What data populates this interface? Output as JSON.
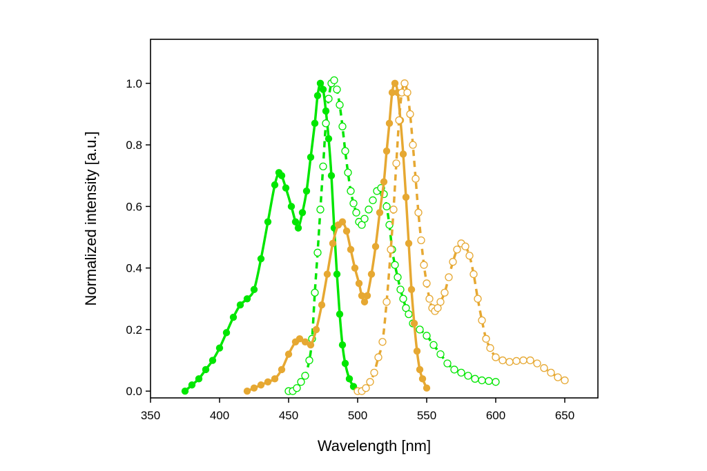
{
  "chart_data": {
    "type": "scatter",
    "title": "",
    "xlabel": "Wavelength [nm]",
    "ylabel": "Normalized intensity [a.u.]",
    "xlim": [
      350,
      674
    ],
    "ylim": [
      -0.022,
      1.143
    ],
    "xticks": [
      "350",
      "400",
      "450",
      "500",
      "550",
      "600",
      "650"
    ],
    "yticks": [
      "0.0",
      "0.2",
      "0.4",
      "0.6",
      "0.8",
      "1.0"
    ],
    "grid": false,
    "legend": "none",
    "series": [
      {
        "color": "#00e600",
        "marker": "filled",
        "line": "solid",
        "x": [
          375,
          380,
          385,
          390,
          395,
          400,
          405,
          410,
          415,
          420,
          425,
          430,
          435,
          440,
          443,
          445,
          448,
          452,
          455,
          457,
          460,
          463,
          466,
          469,
          471,
          473,
          475,
          477,
          479,
          481,
          483,
          485,
          487,
          489,
          491,
          494,
          497,
          500
        ],
        "y": [
          0.0,
          0.02,
          0.04,
          0.07,
          0.1,
          0.14,
          0.19,
          0.24,
          0.28,
          0.3,
          0.33,
          0.43,
          0.55,
          0.67,
          0.71,
          0.7,
          0.66,
          0.6,
          0.55,
          0.53,
          0.58,
          0.65,
          0.76,
          0.87,
          0.96,
          1.0,
          0.98,
          0.91,
          0.82,
          0.7,
          0.53,
          0.38,
          0.25,
          0.15,
          0.09,
          0.04,
          0.015,
          0.0
        ]
      },
      {
        "color": "#00e600",
        "marker": "open",
        "line": "dashed",
        "x": [
          450,
          453,
          456,
          459,
          462,
          465,
          467,
          469,
          471,
          473,
          475,
          477,
          479,
          481,
          483,
          485,
          487,
          489,
          491,
          493,
          495,
          497,
          499,
          501,
          503,
          505,
          508,
          511,
          514,
          517,
          519,
          521,
          523,
          525,
          527,
          529,
          531,
          533,
          535,
          537,
          540,
          545,
          550,
          555,
          560,
          565,
          570,
          575,
          580,
          585,
          590,
          595,
          600
        ],
        "y": [
          0.0,
          0.0,
          0.01,
          0.03,
          0.05,
          0.1,
          0.17,
          0.32,
          0.45,
          0.59,
          0.73,
          0.87,
          0.95,
          1.0,
          1.01,
          0.98,
          0.93,
          0.86,
          0.78,
          0.71,
          0.65,
          0.61,
          0.58,
          0.55,
          0.54,
          0.56,
          0.59,
          0.62,
          0.65,
          0.66,
          0.64,
          0.6,
          0.54,
          0.46,
          0.41,
          0.37,
          0.33,
          0.3,
          0.27,
          0.25,
          0.22,
          0.2,
          0.18,
          0.15,
          0.12,
          0.09,
          0.07,
          0.06,
          0.05,
          0.04,
          0.035,
          0.033,
          0.03
        ]
      },
      {
        "color": "#e6a832",
        "marker": "filled",
        "line": "solid",
        "x": [
          420,
          425,
          430,
          435,
          440,
          445,
          450,
          455,
          458,
          462,
          466,
          470,
          474,
          478,
          482,
          486,
          489,
          492,
          495,
          498,
          501,
          503,
          505,
          507,
          510,
          513,
          516,
          519,
          521,
          523,
          525,
          527,
          529,
          531,
          533,
          535,
          537,
          539,
          541,
          543,
          545,
          547,
          550
        ],
        "y": [
          0.0,
          0.01,
          0.02,
          0.03,
          0.04,
          0.07,
          0.12,
          0.16,
          0.17,
          0.16,
          0.15,
          0.2,
          0.28,
          0.38,
          0.48,
          0.54,
          0.55,
          0.52,
          0.46,
          0.4,
          0.35,
          0.31,
          0.29,
          0.31,
          0.38,
          0.47,
          0.58,
          0.68,
          0.78,
          0.87,
          0.97,
          1.0,
          0.97,
          0.88,
          0.77,
          0.63,
          0.48,
          0.33,
          0.22,
          0.13,
          0.07,
          0.04,
          0.01
        ]
      },
      {
        "color": "#e6a832",
        "marker": "open",
        "line": "dashed",
        "x": [
          500,
          503,
          506,
          509,
          512,
          515,
          518,
          521,
          524,
          526,
          528,
          530,
          532,
          534,
          536,
          538,
          540,
          542,
          544,
          546,
          548,
          550,
          552,
          554,
          556,
          558,
          560,
          563,
          566,
          569,
          572,
          575,
          578,
          581,
          584,
          587,
          590,
          593,
          596,
          600,
          605,
          610,
          615,
          620,
          625,
          630,
          635,
          640,
          645,
          650
        ],
        "y": [
          0.0,
          0.0,
          0.01,
          0.03,
          0.06,
          0.11,
          0.16,
          0.29,
          0.46,
          0.59,
          0.74,
          0.88,
          0.97,
          1.0,
          0.97,
          0.9,
          0.8,
          0.69,
          0.58,
          0.49,
          0.41,
          0.35,
          0.3,
          0.27,
          0.26,
          0.27,
          0.29,
          0.32,
          0.37,
          0.42,
          0.46,
          0.48,
          0.47,
          0.44,
          0.38,
          0.3,
          0.23,
          0.17,
          0.14,
          0.11,
          0.1,
          0.095,
          0.098,
          0.1,
          0.1,
          0.09,
          0.075,
          0.06,
          0.045,
          0.035
        ]
      }
    ]
  }
}
